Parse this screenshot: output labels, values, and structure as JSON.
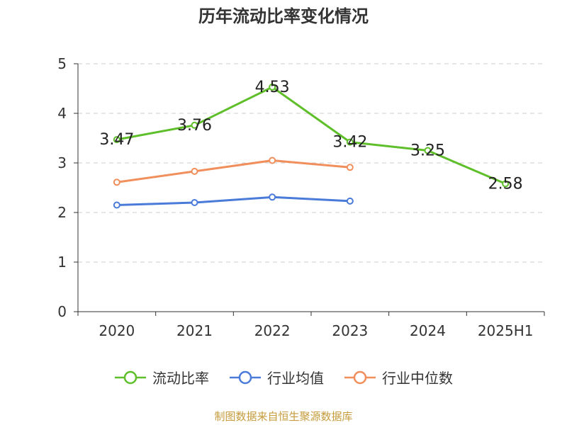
{
  "title": "历年流动比率变化情况",
  "source": "制图数据来自恒生聚源数据库",
  "chart_data": {
    "type": "line",
    "categories": [
      "2020",
      "2021",
      "2022",
      "2023",
      "2024",
      "2025H1"
    ],
    "ylim": [
      0,
      5
    ],
    "yticks": [
      0,
      1,
      2,
      3,
      4,
      5
    ],
    "grid": true,
    "legend_position": "bottom",
    "series": [
      {
        "name": "流动比率",
        "color": "#5fbf2a",
        "values": [
          3.47,
          3.76,
          4.53,
          3.42,
          3.25,
          2.58
        ],
        "show_labels": true
      },
      {
        "name": "行业均值",
        "color": "#4b7bd8",
        "values": [
          2.15,
          2.2,
          2.31,
          2.23,
          null,
          null
        ],
        "show_labels": false
      },
      {
        "name": "行业中位数",
        "color": "#f08f5c",
        "values": [
          2.61,
          2.83,
          3.05,
          2.91,
          null,
          null
        ],
        "show_labels": false
      }
    ]
  }
}
